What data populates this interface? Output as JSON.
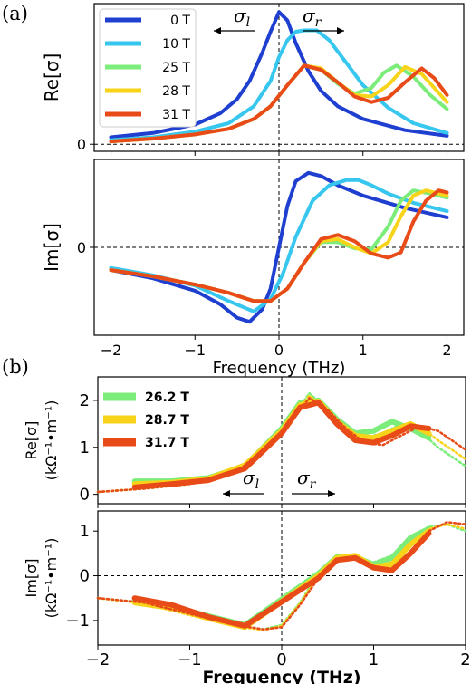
{
  "figure": {
    "panel_a_label": "(a)",
    "panel_b_label": "(b)",
    "sigma_l": "σl",
    "sigma_r": "σr",
    "sigma_l_base": "σ",
    "sigma_l_sub": "l",
    "sigma_r_base": "σ",
    "sigma_r_sub": "r"
  },
  "chart_data": [
    {
      "type": "line",
      "panel": "a-top",
      "ylabel": "Re[σ]",
      "xlim": [
        -2.2,
        2.2
      ],
      "yticks": [
        "0"
      ],
      "legend_placement": "top-left",
      "xticks": [
        "-2",
        "-1",
        "0",
        "1",
        "2"
      ],
      "series": [
        {
          "name": "0 T",
          "color": "#1f3fd0",
          "x": [
            -2,
            -1.5,
            -1,
            -0.7,
            -0.5,
            -0.35,
            -0.2,
            -0.1,
            0,
            0.1,
            0.2,
            0.35,
            0.5,
            0.7,
            1,
            1.5,
            2
          ],
          "y": [
            0.05,
            0.08,
            0.14,
            0.22,
            0.32,
            0.45,
            0.65,
            0.8,
            0.94,
            0.88,
            0.72,
            0.52,
            0.38,
            0.27,
            0.18,
            0.1,
            0.06
          ]
        },
        {
          "name": "10 T",
          "color": "#36c6ee",
          "x": [
            -2,
            -1.5,
            -1,
            -0.6,
            -0.3,
            -0.1,
            0,
            0.1,
            0.2,
            0.3,
            0.45,
            0.6,
            0.8,
            1,
            1.3,
            1.6,
            2
          ],
          "y": [
            0.03,
            0.05,
            0.09,
            0.15,
            0.27,
            0.45,
            0.62,
            0.74,
            0.8,
            0.81,
            0.81,
            0.74,
            0.58,
            0.42,
            0.26,
            0.15,
            0.08
          ]
        },
        {
          "name": "25 T",
          "color": "#7cec7a",
          "x": [
            -2,
            -1.5,
            -1,
            -0.6,
            -0.3,
            -0.1,
            0.1,
            0.3,
            0.5,
            0.7,
            0.9,
            1.1,
            1.25,
            1.4,
            1.6,
            1.8,
            2
          ],
          "y": [
            0.02,
            0.04,
            0.07,
            0.11,
            0.18,
            0.27,
            0.42,
            0.56,
            0.53,
            0.43,
            0.36,
            0.4,
            0.51,
            0.56,
            0.48,
            0.35,
            0.25
          ]
        },
        {
          "name": "28 T",
          "color": "#f7d31a",
          "x": [
            -2,
            -1.5,
            -1,
            -0.6,
            -0.3,
            -0.1,
            0.1,
            0.3,
            0.5,
            0.7,
            0.9,
            1.1,
            1.3,
            1.5,
            1.7,
            1.85,
            2
          ],
          "y": [
            0.02,
            0.04,
            0.07,
            0.11,
            0.18,
            0.27,
            0.42,
            0.56,
            0.54,
            0.44,
            0.35,
            0.34,
            0.42,
            0.55,
            0.5,
            0.4,
            0.3
          ]
        },
        {
          "name": "31 T",
          "color": "#e84a18",
          "x": [
            -2,
            -1.5,
            -1,
            -0.6,
            -0.3,
            -0.1,
            0.1,
            0.3,
            0.5,
            0.7,
            0.9,
            1.1,
            1.3,
            1.5,
            1.7,
            1.85,
            2
          ],
          "y": [
            0.02,
            0.04,
            0.07,
            0.11,
            0.18,
            0.27,
            0.42,
            0.56,
            0.53,
            0.44,
            0.34,
            0.3,
            0.33,
            0.44,
            0.54,
            0.47,
            0.35
          ]
        }
      ]
    },
    {
      "type": "line",
      "panel": "a-bottom",
      "ylabel": "Im[σ]",
      "xlabel": "Frequency (THz)",
      "xlim": [
        -2.2,
        2.2
      ],
      "yticks": [
        "0"
      ],
      "xticks": [
        "-2",
        "-1",
        "0",
        "1",
        "2"
      ],
      "series": [
        {
          "name": "0 T",
          "color": "#1f3fd0",
          "x": [
            -2,
            -1.5,
            -1,
            -0.7,
            -0.5,
            -0.35,
            -0.2,
            -0.1,
            0,
            0.1,
            0.2,
            0.35,
            0.5,
            0.7,
            1,
            1.5,
            2
          ],
          "y": [
            -0.22,
            -0.3,
            -0.42,
            -0.55,
            -0.68,
            -0.72,
            -0.6,
            -0.4,
            0,
            0.4,
            0.64,
            0.72,
            0.69,
            0.6,
            0.5,
            0.38,
            0.29
          ]
        },
        {
          "name": "10 T",
          "color": "#36c6ee",
          "x": [
            -2,
            -1.5,
            -1,
            -0.6,
            -0.3,
            -0.1,
            0.05,
            0.2,
            0.4,
            0.6,
            0.8,
            0.95,
            1.1,
            1.3,
            1.6,
            2
          ],
          "y": [
            -0.2,
            -0.27,
            -0.37,
            -0.52,
            -0.62,
            -0.5,
            -0.25,
            0.1,
            0.45,
            0.6,
            0.65,
            0.65,
            0.6,
            0.52,
            0.43,
            0.35
          ]
        },
        {
          "name": "25 T",
          "color": "#7cec7a",
          "x": [
            -2,
            -1.5,
            -1,
            -0.6,
            -0.3,
            -0.1,
            0.1,
            0.3,
            0.5,
            0.7,
            0.9,
            1.1,
            1.3,
            1.45,
            1.6,
            1.8,
            2
          ],
          "y": [
            -0.22,
            -0.28,
            -0.36,
            -0.44,
            -0.52,
            -0.52,
            -0.4,
            -0.15,
            0.05,
            0.05,
            -0.01,
            -0.02,
            0.2,
            0.45,
            0.55,
            0.52,
            0.48
          ]
        },
        {
          "name": "28 T",
          "color": "#f7d31a",
          "x": [
            -2,
            -1.5,
            -1,
            -0.6,
            -0.3,
            -0.1,
            0.1,
            0.3,
            0.5,
            0.7,
            0.9,
            1.1,
            1.3,
            1.45,
            1.6,
            1.75,
            2
          ],
          "y": [
            -0.22,
            -0.28,
            -0.36,
            -0.44,
            -0.52,
            -0.52,
            -0.4,
            -0.15,
            0.06,
            0.08,
            0.0,
            -0.06,
            0.05,
            0.3,
            0.5,
            0.55,
            0.5
          ]
        },
        {
          "name": "31 T",
          "color": "#e84a18",
          "x": [
            -2,
            -1.5,
            -1,
            -0.6,
            -0.3,
            -0.1,
            0.1,
            0.3,
            0.5,
            0.7,
            0.9,
            1.1,
            1.3,
            1.45,
            1.6,
            1.75,
            1.9,
            2
          ],
          "y": [
            -0.22,
            -0.28,
            -0.36,
            -0.44,
            -0.52,
            -0.52,
            -0.4,
            -0.15,
            0.08,
            0.12,
            0.06,
            -0.06,
            -0.1,
            -0.05,
            0.25,
            0.45,
            0.55,
            0.53
          ]
        }
      ]
    },
    {
      "type": "line",
      "panel": "b-top",
      "ylabel": "Re[σ]",
      "ylabel2": "(kΩ⁻¹•m⁻¹)",
      "xlim": [
        -2,
        2
      ],
      "ylim": [
        -0.2,
        2.5
      ],
      "yticks": [
        "0",
        "1",
        "2"
      ],
      "legend_placement": "top-left",
      "xticks": [
        "-2",
        "-1",
        "0",
        "1",
        "2"
      ],
      "series": [
        {
          "name": "26.2 T",
          "color": "#7cec7a",
          "x": [
            -1.6,
            -1.2,
            -0.8,
            -0.4,
            0,
            0.2,
            0.4,
            0.6,
            0.8,
            1,
            1.2,
            1.4,
            1.6
          ],
          "y": [
            0.28,
            0.28,
            0.35,
            0.6,
            1.4,
            1.95,
            2.0,
            1.6,
            1.3,
            1.35,
            1.55,
            1.4,
            1.2
          ],
          "fit_x": [
            -2,
            -1.5,
            -1,
            -0.5,
            0,
            0.3,
            0.5,
            0.7,
            0.9,
            1.1,
            1.3,
            1.5,
            1.7,
            2
          ],
          "fit_y": [
            0.05,
            0.12,
            0.22,
            0.45,
            1.3,
            2.15,
            1.8,
            1.4,
            1.2,
            1.3,
            1.5,
            1.35,
            1.0,
            0.6
          ]
        },
        {
          "name": "28.7 T",
          "color": "#f7d31a",
          "x": [
            -1.6,
            -1.2,
            -0.8,
            -0.4,
            0,
            0.2,
            0.4,
            0.6,
            0.8,
            1,
            1.2,
            1.4,
            1.6
          ],
          "y": [
            0.22,
            0.25,
            0.33,
            0.62,
            1.35,
            1.9,
            1.98,
            1.55,
            1.25,
            1.2,
            1.35,
            1.5,
            1.3
          ],
          "fit_x": [
            -2,
            -1.5,
            -1,
            -0.5,
            0,
            0.3,
            0.5,
            0.7,
            0.9,
            1.1,
            1.3,
            1.5,
            1.7,
            2
          ],
          "fit_y": [
            0.05,
            0.12,
            0.22,
            0.45,
            1.3,
            2.1,
            1.8,
            1.4,
            1.15,
            1.15,
            1.35,
            1.45,
            1.15,
            0.75
          ]
        },
        {
          "name": "31.7 T",
          "color": "#e84a18",
          "x": [
            -1.6,
            -1.2,
            -0.8,
            -0.4,
            0,
            0.2,
            0.4,
            0.6,
            0.8,
            1,
            1.2,
            1.4,
            1.6
          ],
          "y": [
            0.15,
            0.22,
            0.3,
            0.55,
            1.3,
            1.85,
            1.95,
            1.5,
            1.15,
            1.1,
            1.25,
            1.45,
            1.4
          ],
          "fit_x": [
            -2,
            -1.5,
            -1,
            -0.5,
            0,
            0.3,
            0.5,
            0.7,
            0.9,
            1.1,
            1.3,
            1.5,
            1.7,
            2
          ],
          "fit_y": [
            0.05,
            0.12,
            0.22,
            0.45,
            1.3,
            2.05,
            1.8,
            1.4,
            1.1,
            1.05,
            1.25,
            1.45,
            1.35,
            0.95
          ]
        }
      ]
    },
    {
      "type": "line",
      "panel": "b-bottom",
      "ylabel": "Im[σ]",
      "ylabel2": "(kΩ⁻¹•m⁻¹)",
      "xlabel": "Frequency (THz)",
      "xlim": [
        -2,
        2
      ],
      "ylim": [
        -1.55,
        1.45
      ],
      "yticks": [
        "-1",
        "0",
        "1"
      ],
      "xticks": [
        "-2",
        "-1",
        "0",
        "1",
        "2"
      ],
      "series": [
        {
          "name": "26.2 T",
          "color": "#7cec7a",
          "x": [
            -1.6,
            -1.2,
            -0.8,
            -0.4,
            0.4,
            0.6,
            0.8,
            1,
            1.2,
            1.4,
            1.6
          ],
          "y": [
            -0.55,
            -0.68,
            -0.9,
            -1.1,
            0.05,
            0.42,
            0.42,
            0.25,
            0.4,
            0.85,
            1.05
          ],
          "fit_x": [
            -2,
            -1.5,
            -1,
            -0.5,
            -0.2,
            0,
            0.2,
            0.4,
            0.6,
            0.8,
            1,
            1.2,
            1.4,
            1.6,
            1.8,
            2
          ],
          "fit_y": [
            -0.5,
            -0.6,
            -0.85,
            -1.1,
            -1.2,
            -1.1,
            -0.6,
            0.05,
            0.4,
            0.4,
            0.3,
            0.45,
            0.85,
            1.1,
            1.15,
            1.0
          ]
        },
        {
          "name": "28.7 T",
          "color": "#f7d31a",
          "x": [
            -1.6,
            -1.2,
            -0.8,
            -0.4,
            0.4,
            0.6,
            0.8,
            1,
            1.2,
            1.4,
            1.6
          ],
          "y": [
            -0.6,
            -0.72,
            -0.95,
            -1.15,
            0.0,
            0.4,
            0.45,
            0.2,
            0.25,
            0.7,
            1.0
          ],
          "fit_x": [
            -2,
            -1.5,
            -1,
            -0.5,
            -0.2,
            0,
            0.2,
            0.4,
            0.6,
            0.8,
            1,
            1.2,
            1.4,
            1.6,
            1.8,
            2
          ],
          "fit_y": [
            -0.5,
            -0.62,
            -0.88,
            -1.12,
            -1.22,
            -1.12,
            -0.62,
            0.0,
            0.4,
            0.42,
            0.22,
            0.3,
            0.7,
            1.05,
            1.15,
            1.05
          ]
        },
        {
          "name": "31.7 T",
          "color": "#e84a18",
          "x": [
            -1.6,
            -1.2,
            -0.8,
            -0.4,
            0.4,
            0.6,
            0.8,
            1,
            1.2,
            1.4,
            1.6
          ],
          "y": [
            -0.5,
            -0.65,
            -0.92,
            -1.12,
            -0.05,
            0.35,
            0.4,
            0.18,
            0.12,
            0.5,
            0.95
          ],
          "fit_x": [
            -2,
            -1.5,
            -1,
            -0.5,
            -0.2,
            0,
            0.2,
            0.4,
            0.6,
            0.8,
            1,
            1.2,
            1.4,
            1.6,
            1.8,
            2
          ],
          "fit_y": [
            -0.5,
            -0.6,
            -0.85,
            -1.1,
            -1.2,
            -1.15,
            -0.65,
            -0.05,
            0.35,
            0.4,
            0.2,
            0.15,
            0.55,
            1.0,
            1.2,
            1.15
          ]
        }
      ]
    }
  ]
}
